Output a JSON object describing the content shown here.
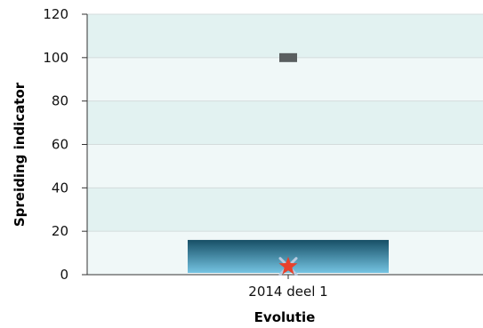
{
  "chart_data": {
    "type": "bar",
    "categories": [
      "2014 deel 1"
    ],
    "xlabel": "Evolutie",
    "ylabel": "Spreiding indicator",
    "ylim": [
      0,
      120
    ],
    "yticks": [
      0,
      20,
      40,
      60,
      80,
      100,
      120
    ],
    "grid": true,
    "bar": {
      "low": 0,
      "high": 16
    },
    "marks": {
      "dash": 100,
      "cross": 3,
      "star": 3
    },
    "colors": {
      "band_dark": "#e2f2f1",
      "band_light": "#f0f8f8",
      "bar_top": "#174f66",
      "bar_bottom": "#75c4e2",
      "dash": "#5a5f60",
      "star": "#e8412c",
      "cross": "#b9cbe0"
    }
  }
}
